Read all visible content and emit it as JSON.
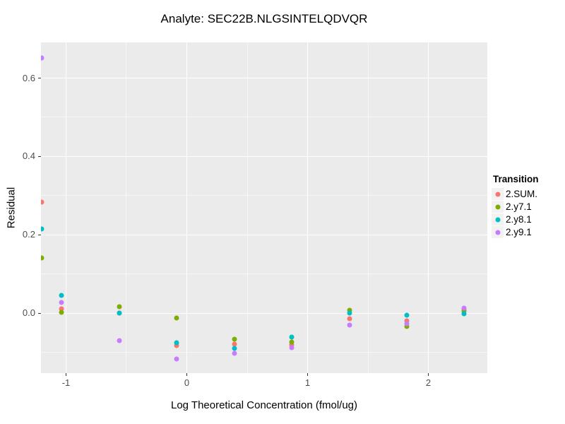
{
  "title": "Analyte: SEC22B.NLGSINTELQDVQR",
  "chart_data": {
    "type": "scatter",
    "title": "Analyte: SEC22B.NLGSINTELQDVQR",
    "xlabel": "Log Theoretical Concentration (fmol/ug)",
    "ylabel": "Residual",
    "xlim": [
      -1.2076,
      2.4883
    ],
    "ylim": [
      -0.1523,
      0.691
    ],
    "x_ticks": [
      -1,
      0,
      1,
      2
    ],
    "x_tick_labels": [
      "-1",
      "0",
      "1",
      "2"
    ],
    "y_ticks": [
      0.0,
      0.2,
      0.4,
      0.6
    ],
    "y_tick_labels": [
      "0.0",
      "0.2",
      "0.4",
      "0.6"
    ],
    "x_minor": [
      -0.5,
      0.5,
      1.5
    ],
    "y_minor": [
      -0.1,
      0.1,
      0.3,
      0.5
    ],
    "grid": true,
    "legend_title": "Transition",
    "legend_position": "right",
    "panel_bg": "#EBEBEB",
    "legend_key_bg": "#F2F2F2",
    "series": [
      {
        "name": "2.SUM.",
        "color": "#F8766D",
        "points": [
          [
            -1.199,
            0.284
          ],
          [
            -1.038,
            0.012
          ],
          [
            -0.558,
            0.001
          ],
          [
            -0.085,
            -0.082
          ],
          [
            0.395,
            -0.078
          ],
          [
            0.868,
            -0.08
          ],
          [
            1.348,
            -0.014
          ],
          [
            1.822,
            -0.019
          ],
          [
            2.295,
            0.012
          ]
        ]
      },
      {
        "name": "2.y7.1",
        "color": "#7CAE00",
        "points": [
          [
            -1.199,
            0.141
          ],
          [
            -1.038,
            0.003
          ],
          [
            -0.558,
            0.017
          ],
          [
            -0.085,
            -0.012
          ],
          [
            0.395,
            -0.066
          ],
          [
            0.868,
            -0.073
          ],
          [
            1.348,
            0.008
          ],
          [
            1.822,
            -0.033
          ],
          [
            2.295,
            0.006
          ]
        ]
      },
      {
        "name": "2.y8.1",
        "color": "#00BFC4",
        "points": [
          [
            -1.199,
            0.215
          ],
          [
            -1.038,
            0.046
          ],
          [
            -0.558,
            0.0
          ],
          [
            -0.085,
            -0.075
          ],
          [
            0.395,
            -0.089
          ],
          [
            0.868,
            -0.06
          ],
          [
            1.348,
            0.0
          ],
          [
            1.822,
            -0.005
          ],
          [
            2.295,
            -0.001
          ]
        ]
      },
      {
        "name": "2.y9.1",
        "color": "#C77CFF",
        "points": [
          [
            -1.199,
            0.651
          ],
          [
            -1.038,
            0.028
          ],
          [
            -0.558,
            -0.069
          ],
          [
            -0.085,
            -0.116
          ],
          [
            0.395,
            -0.102
          ],
          [
            0.868,
            -0.087
          ],
          [
            1.348,
            -0.03
          ],
          [
            1.822,
            -0.026
          ],
          [
            2.295,
            0.014
          ]
        ]
      }
    ]
  }
}
